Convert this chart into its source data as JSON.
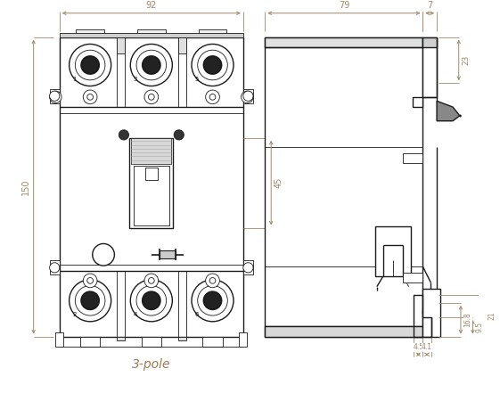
{
  "bg_color": "#ffffff",
  "line_color": "#1a1a1a",
  "dim_color": "#a08868",
  "label_color": "#a07850",
  "fig_width": 5.61,
  "fig_height": 4.41,
  "label_3pole": "3-pole",
  "dim_92": "92",
  "dim_150": "150",
  "dim_45": "45",
  "dim_79": "79",
  "dim_7": "7",
  "dim_23": "23",
  "dim_168": "16.8",
  "dim_95": "9.5",
  "dim_21": "21",
  "dim_45b": "4.5",
  "dim_41": "4.1"
}
